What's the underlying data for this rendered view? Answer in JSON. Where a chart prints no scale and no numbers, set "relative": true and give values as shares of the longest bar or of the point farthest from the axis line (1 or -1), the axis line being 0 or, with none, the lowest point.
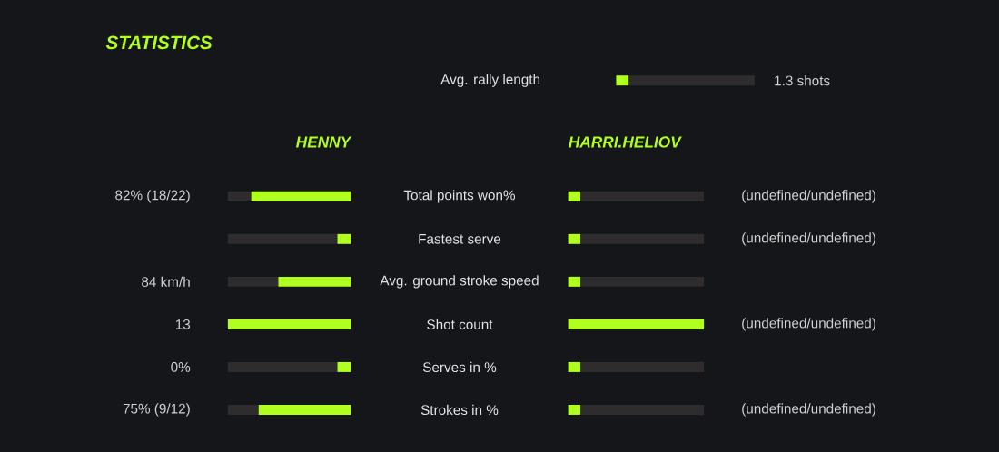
{
  "chart_data": [
    {
      "type": "bar",
      "orientation": "horizontal",
      "stacked": true,
      "relative": true,
      "categories": [
        "Avg. rally length"
      ],
      "series": [
        {
          "color": "#b0ff1f",
          "values": [
            0.09
          ]
        },
        {
          "color": "#2e2c2d",
          "values": [
            0.91
          ]
        }
      ],
      "annotations": [
        "1.3 shots"
      ]
    },
    {
      "type": "bar",
      "orientation": "horizontal",
      "stacked": true,
      "relative": true,
      "title": "STATISTICS",
      "categories": [
        "Total points won%",
        "Fastest serve",
        "Avg. ground stroke speed",
        "Shot count",
        "Serves in %",
        "Strokes in %"
      ],
      "series": [
        {
          "name": "HENNY",
          "color": "#b0ff1f",
          "values": [
            -0.81,
            -0.11,
            -0.59,
            -1.0,
            -0.11,
            -0.75
          ]
        },
        {
          "color": "#2e2c2d",
          "values": [
            -0.19,
            -0.89,
            -0.41,
            0,
            -0.89,
            -0.25
          ]
        }
      ],
      "annotations": [
        "82% (18/22)",
        "84 km/h",
        "13",
        "0%",
        "75% (9/12)"
      ]
    },
    {
      "type": "bar",
      "orientation": "horizontal",
      "stacked": true,
      "relative": true,
      "categories": [
        null,
        null,
        null,
        null,
        null,
        null
      ],
      "series": [
        {
          "name": "HARRI.HELIOV",
          "color": "#b0ff1f",
          "values": [
            0.09,
            0.09,
            0.09,
            1.0,
            0.09,
            0.09
          ]
        },
        {
          "color": "#2e2c2d",
          "values": [
            0.91,
            0.91,
            0.91,
            0,
            0.91,
            0.91
          ]
        }
      ],
      "annotations": [
        "(undefined/undefined)",
        "(undefined/undefined)",
        "(undefined/undefined)",
        "(undefined/undefined)"
      ]
    }
  ]
}
